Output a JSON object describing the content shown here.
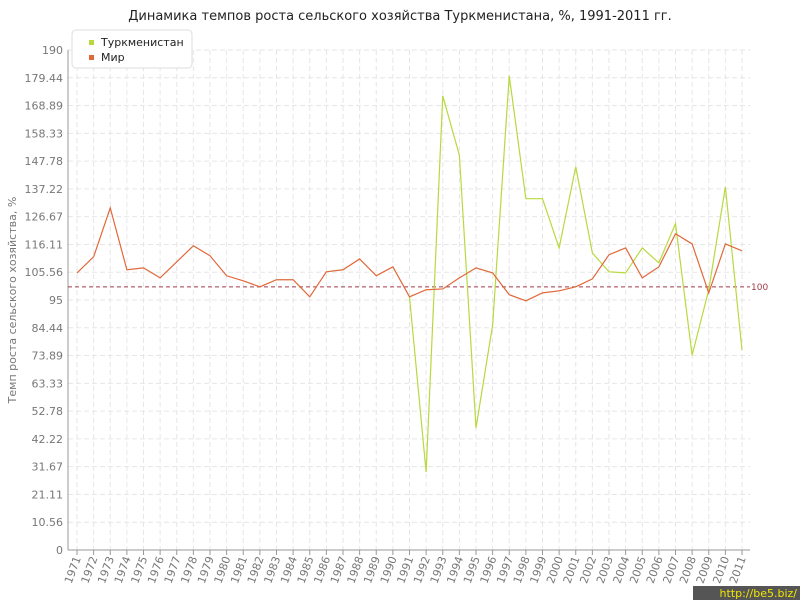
{
  "chart_data": {
    "type": "line",
    "title": "Динамика темпов роста сельского хозяйства Туркменистана, %, 1991-2011 гг.",
    "y_label": "Темп роста сельского хозяйства, %",
    "watermark": "http://be5.biz/",
    "categories": [
      "1971",
      "1972",
      "1973",
      "1974",
      "1975",
      "1976",
      "1977",
      "1978",
      "1979",
      "1980",
      "1981",
      "1982",
      "1983",
      "1984",
      "1985",
      "1986",
      "1987",
      "1988",
      "1989",
      "1990",
      "1991",
      "1992",
      "1993",
      "1994",
      "1995",
      "1996",
      "1997",
      "1998",
      "1999",
      "2000",
      "2001",
      "2002",
      "2003",
      "2004",
      "2005",
      "2006",
      "2007",
      "2008",
      "2009",
      "2010",
      "2011"
    ],
    "series": [
      {
        "name": "Туркменистан",
        "color": "#b8d93e",
        "values": [
          null,
          null,
          null,
          null,
          null,
          null,
          null,
          null,
          null,
          null,
          null,
          null,
          null,
          null,
          null,
          null,
          null,
          null,
          null,
          null,
          96.2,
          29.6,
          172.6,
          150,
          46.4,
          85.5,
          180.2,
          133.5,
          133.5,
          114.8,
          145.6,
          112.9,
          105.7,
          105.3,
          114.8,
          109.1,
          124,
          74,
          98.9,
          138,
          76
        ]
      },
      {
        "name": "Мир",
        "color": "#e0683a",
        "values": [
          105.3,
          111.4,
          130,
          106.5,
          107.2,
          103.4,
          109.5,
          115.6,
          111.8,
          104.2,
          102.3,
          100,
          102.7,
          102.7,
          96.2,
          105.7,
          106.5,
          110.6,
          104.2,
          107.6,
          96.2,
          98.9,
          99.2,
          103.4,
          107.2,
          105.3,
          97,
          94.7,
          97.7,
          98.5,
          100,
          103,
          112.2,
          114.8,
          103.4,
          107.6,
          120.2,
          116.3,
          97.7,
          116.3,
          113.7
        ]
      }
    ],
    "reference_line": 100,
    "reference_color": "#a33a4a",
    "ylim": [
      0,
      190
    ],
    "yticks": [
      0,
      10.56,
      21.11,
      31.67,
      42.22,
      52.78,
      63.33,
      73.89,
      84.44,
      95,
      105.56,
      116.11,
      126.67,
      137.22,
      147.78,
      158.33,
      168.89,
      179.44,
      190
    ],
    "grid": true,
    "legend": "top-left"
  }
}
